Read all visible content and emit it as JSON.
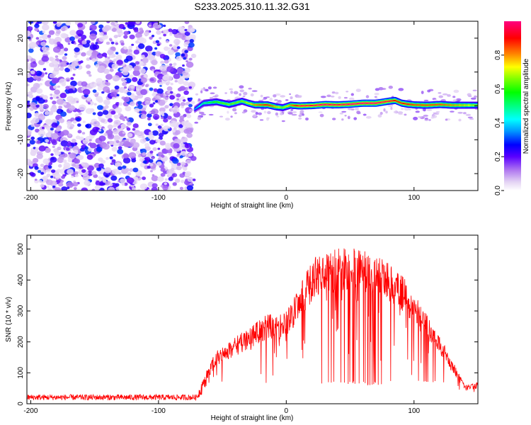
{
  "figure": {
    "title": "S233.2025.310.11.32.G31"
  },
  "chart_data": [
    {
      "type": "heatmap",
      "title": "S233.2025.310.11.32.G31",
      "xlabel": "Height of straight line (km)",
      "ylabel": "Frequency (Hz)",
      "xlim": [
        -203,
        150
      ],
      "ylim": [
        -25,
        25
      ],
      "xticks": [
        -200,
        -100,
        0,
        100
      ],
      "yticks": [
        -20,
        -10,
        0,
        10,
        20
      ],
      "noise_region_x": [
        -203,
        -72
      ],
      "ridge": {
        "x": [
          -72,
          -65,
          -55,
          -45,
          -35,
          -30,
          -25,
          -15,
          -8,
          -3,
          3,
          10,
          20,
          30,
          40,
          50,
          60,
          70,
          80,
          85,
          90,
          95,
          100,
          110,
          120,
          130,
          140,
          150
        ],
        "frequency": [
          -1.0,
          0.8,
          1.2,
          0.4,
          1.4,
          0.8,
          0.3,
          0.3,
          -0.3,
          -0.5,
          0.2,
          0.0,
          0.1,
          0.4,
          0.3,
          0.5,
          0.8,
          0.8,
          1.4,
          1.6,
          0.8,
          0.5,
          0.3,
          0.2,
          0.4,
          0.2,
          0.2,
          0.2
        ],
        "amplitude": [
          0.3,
          0.45,
          0.55,
          0.6,
          0.6,
          0.65,
          0.75,
          0.85,
          0.7,
          0.6,
          0.75,
          0.9,
          0.9,
          0.95,
          0.9,
          0.95,
          0.95,
          0.95,
          0.9,
          0.85,
          0.85,
          0.85,
          0.8,
          0.8,
          0.8,
          0.75,
          0.7,
          0.6
        ]
      },
      "colorbar": {
        "label": "Normalized spectral amplitude",
        "range": [
          0,
          1
        ],
        "ticks": [
          "0.0",
          "0.2",
          "0.4",
          "0.6",
          "0.8"
        ]
      }
    },
    {
      "type": "line",
      "xlabel": "Height of straight line (km)",
      "ylabel": "SNR (10 * v/v)",
      "xlim": [
        -203,
        150
      ],
      "ylim": [
        0,
        545
      ],
      "xticks": [
        -200,
        -100,
        0,
        100
      ],
      "yticks": [
        0,
        100,
        200,
        300,
        400,
        500
      ],
      "color": "#ff0000",
      "envelope": {
        "x": [
          -203,
          -100,
          -70,
          -62,
          -55,
          -45,
          -35,
          -25,
          -15,
          -5,
          0,
          5,
          10,
          15,
          20,
          25,
          30,
          40,
          50,
          60,
          70,
          80,
          90,
          100,
          110,
          120,
          130,
          140,
          150
        ],
        "snr": [
          25,
          25,
          25,
          110,
          170,
          200,
          230,
          260,
          290,
          290,
          300,
          330,
          380,
          420,
          460,
          490,
          500,
          505,
          505,
          500,
          480,
          460,
          420,
          360,
          290,
          220,
          140,
          60,
          70
        ]
      },
      "dropouts": {
        "range_x": [
          25,
          82
        ],
        "range_x_2": [
          100,
          125
        ],
        "floor_snr": 60
      }
    }
  ]
}
